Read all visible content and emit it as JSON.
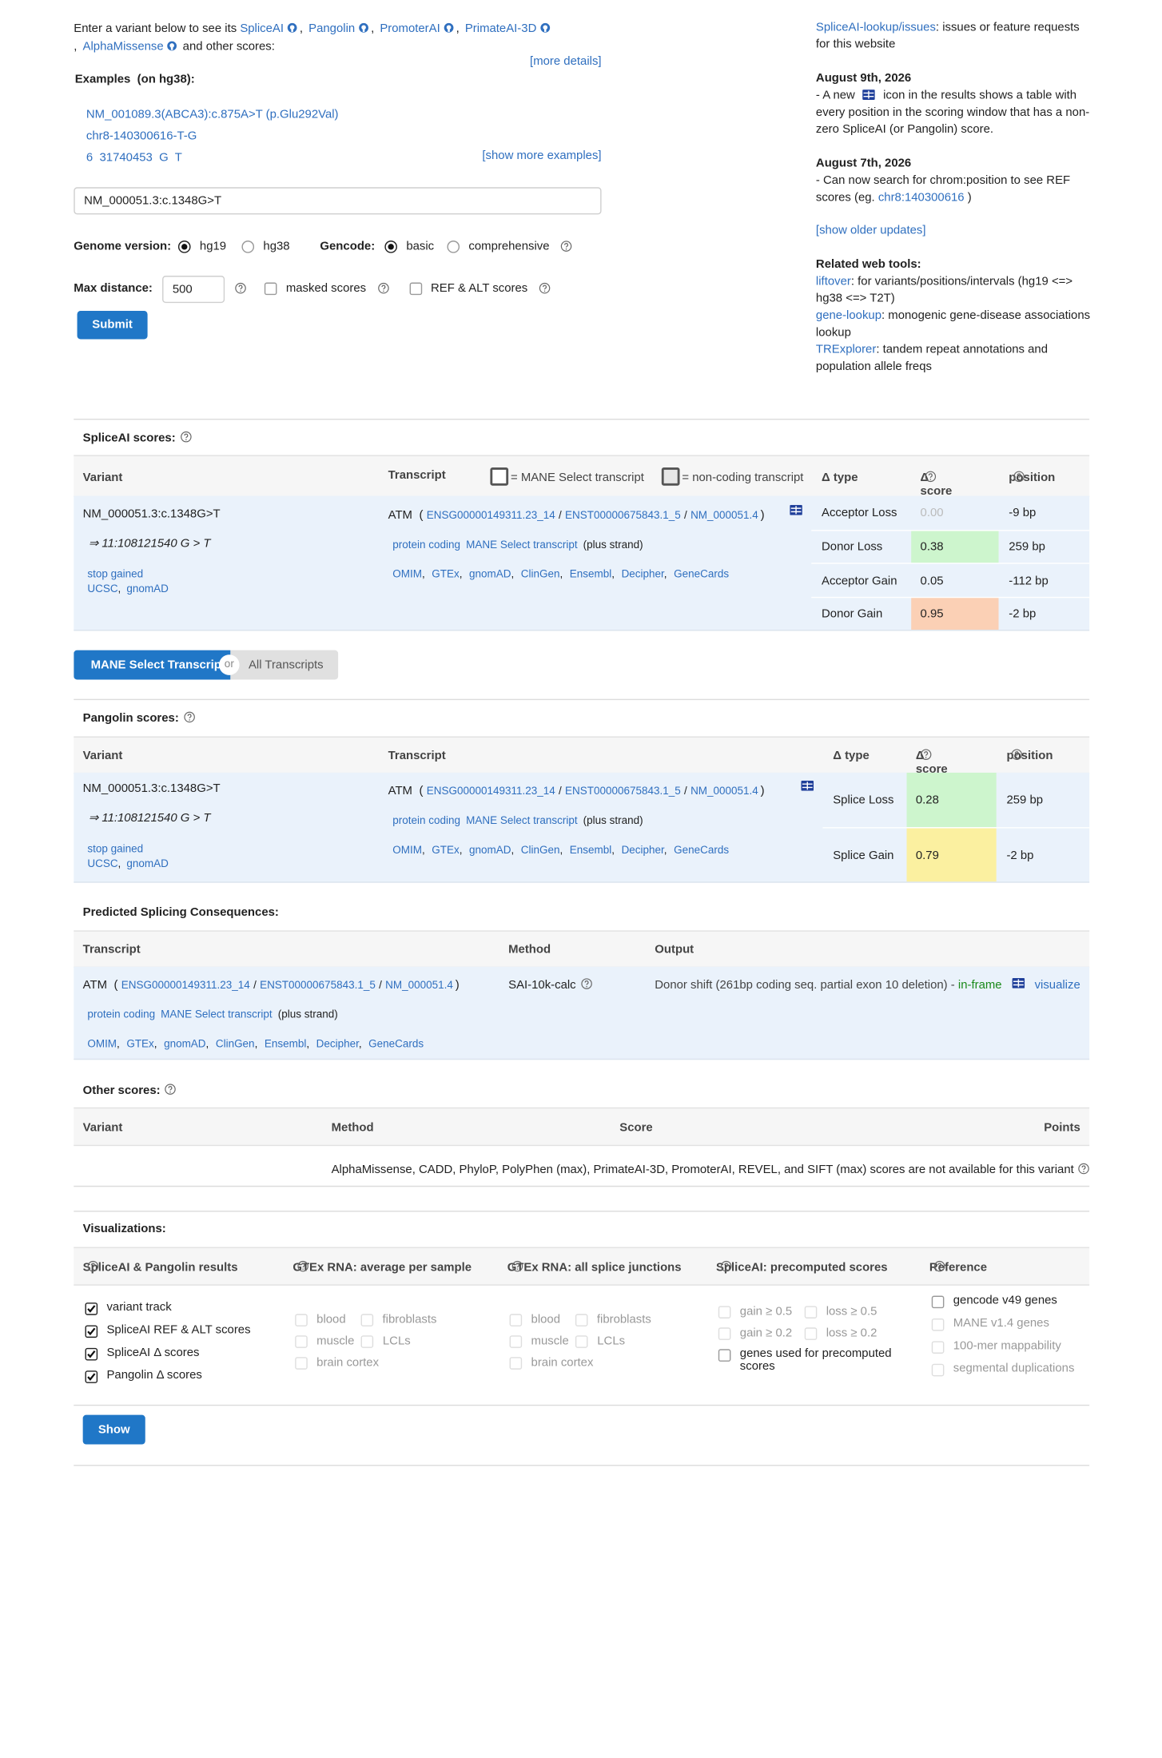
{
  "intro": {
    "lead": "Enter a variant below to see its",
    "tools": [
      "SpliceAI",
      "Pangolin",
      "PromoterAI",
      "PrimateAI-3D",
      "AlphaMissense"
    ],
    "separator": ",",
    "tail": "and other scores:",
    "more_details": "[more details]"
  },
  "examples": {
    "label": "Examples",
    "build": "(on hg38):",
    "items": [
      "NM_001089.3(ABCA3):c.875A>T (p.Glu292Val)",
      "chr8-140300616-T-G",
      "6  31740453  G  T"
    ],
    "show_more": "[show more examples]"
  },
  "form": {
    "variant": "NM_000051.3:c.1348G>T",
    "genome_label": "Genome version:",
    "genomes": [
      {
        "label": "hg19",
        "selected": true
      },
      {
        "label": "hg38",
        "selected": false
      }
    ],
    "gencode_label": "Gencode:",
    "gencodes": [
      {
        "label": "basic",
        "selected": true
      },
      {
        "label": "comprehensive",
        "selected": false
      }
    ],
    "max_distance_label": "Max distance:",
    "max_distance": "500",
    "options": [
      {
        "label": "masked scores",
        "checked": false
      },
      {
        "label": "REF & ALT scores",
        "checked": false
      }
    ],
    "submit": "Submit"
  },
  "sidebar": {
    "issues_link": "SpliceAI-lookup/issues",
    "issues_text": ": issues or feature requests for this website",
    "updates": [
      {
        "date": "August 9th, 2026",
        "before": "- A new",
        "after": "icon in the results shows a table with every position in the scoring window that has a non-zero SpliceAI (or Pangolin) score."
      },
      {
        "date": "August 7th, 2026",
        "before": "- Can now search for chrom:position to see REF scores (eg.",
        "link": "chr8:140300616",
        "after": ")"
      }
    ],
    "show_older": "[show older updates]",
    "tools_title": "Related web tools:",
    "tools": [
      {
        "name": "liftover",
        "text": ": for variants/positions/intervals (hg19 <=> hg38 <=> T2T)"
      },
      {
        "name": "gene-lookup",
        "text": ": monogenic gene-disease associations lookup"
      },
      {
        "name": "TRExplorer",
        "text": ": tandem repeat annotations and population allele freqs"
      }
    ]
  },
  "variant": {
    "hgvs": "NM_000051.3:c.1348G>T",
    "genomic": "⇒ 11:108121540 G > T",
    "consequence": "stop gained",
    "links": [
      "UCSC",
      "gnomAD"
    ],
    "link_separator": ","
  },
  "transcript": {
    "gene": "ATM",
    "open": "(",
    "ids": [
      "ENSG00000149311.23_14",
      "ENST00000675843.1_5",
      "NM_000051.4"
    ],
    "id_separator": "/",
    "close": ")",
    "biotype": "protein coding",
    "mane": "MANE Select transcript",
    "strand": "(plus strand)",
    "links": [
      "OMIM",
      "GTEx",
      "gnomAD",
      "ClinGen",
      "Ensembl",
      "Decipher",
      "GeneCards"
    ],
    "link_separator": ","
  },
  "spliceai": {
    "title": "SpliceAI scores:",
    "headers": {
      "variant": "Variant",
      "transcript": "Transcript",
      "mane_legend": "= MANE Select transcript",
      "noncoding_legend": "= non-coding transcript",
      "type": "Δ type",
      "score": "Δ score",
      "position": "position"
    },
    "rows": [
      {
        "type": "Acceptor Loss",
        "score": "0.00",
        "position": "-9 bp",
        "text_color": "#bbbbbb"
      },
      {
        "type": "Donor Loss",
        "score": "0.38",
        "position": "259 bp",
        "color": "#cdf5cd"
      },
      {
        "type": "Acceptor Gain",
        "score": "0.05",
        "position": "-112 bp"
      },
      {
        "type": "Donor Gain",
        "score": "0.95",
        "position": "-2 bp",
        "color": "#fbd0b5"
      }
    ]
  },
  "toggle": {
    "selected": "MANE Select Transcript",
    "or": "or",
    "other": "All Transcripts"
  },
  "pangolin": {
    "title": "Pangolin scores:",
    "headers": {
      "variant": "Variant",
      "transcript": "Transcript",
      "type": "Δ type",
      "score": "Δ score",
      "position": "position"
    },
    "rows": [
      {
        "type": "Splice Loss",
        "score": "0.28",
        "position": "259 bp",
        "color": "#cdf5cd"
      },
      {
        "type": "Splice Gain",
        "score": "0.79",
        "position": "-2 bp",
        "color": "#fbf0a0"
      }
    ]
  },
  "consequences": {
    "title": "Predicted Splicing Consequences:",
    "headers": {
      "transcript": "Transcript",
      "method": "Method",
      "output": "Output"
    },
    "method": "SAI-10k-calc",
    "output": "Donor shift (261bp coding seq. partial exon 10 deletion) -",
    "frame": "in-frame",
    "visualize": "visualize"
  },
  "other_scores": {
    "title": "Other scores:",
    "headers": {
      "variant": "Variant",
      "method": "Method",
      "score": "Score",
      "points": "Points"
    },
    "message": "AlphaMissense, CADD, PhyloP, PolyPhen (max), PrimateAI-3D, PromoterAI, REVEL, and SIFT (max) scores are not available for this variant"
  },
  "visualizations": {
    "title": "Visualizations:",
    "groups": [
      {
        "title": "SpliceAI & Pangolin results",
        "items": [
          {
            "label": "variant track",
            "checked": true,
            "enabled": true
          },
          {
            "label": "SpliceAI REF & ALT scores",
            "checked": true,
            "enabled": true
          },
          {
            "label": "SpliceAI Δ scores",
            "checked": true,
            "enabled": true
          },
          {
            "label": "Pangolin Δ scores",
            "checked": true,
            "enabled": true
          }
        ]
      },
      {
        "title": "GTEx RNA: average per sample",
        "items": [
          {
            "label": "blood",
            "checked": false,
            "enabled": false
          },
          {
            "label": "fibroblasts",
            "checked": false,
            "enabled": false
          },
          {
            "label": "muscle",
            "checked": false,
            "enabled": false
          },
          {
            "label": "LCLs",
            "checked": false,
            "enabled": false
          },
          {
            "label": "brain cortex",
            "checked": false,
            "enabled": false
          }
        ]
      },
      {
        "title": "GTEx RNA: all splice junctions",
        "items": [
          {
            "label": "blood",
            "checked": false,
            "enabled": false
          },
          {
            "label": "fibroblasts",
            "checked": false,
            "enabled": false
          },
          {
            "label": "muscle",
            "checked": false,
            "enabled": false
          },
          {
            "label": "LCLs",
            "checked": false,
            "enabled": false
          },
          {
            "label": "brain cortex",
            "checked": false,
            "enabled": false
          }
        ]
      },
      {
        "title": "SpliceAI: precomputed scores",
        "items": [
          {
            "label": "gain ≥ 0.5",
            "checked": false,
            "enabled": false
          },
          {
            "label": "loss ≥ 0.5",
            "checked": false,
            "enabled": false
          },
          {
            "label": "gain ≥ 0.2",
            "checked": false,
            "enabled": false
          },
          {
            "label": "loss ≥ 0.2",
            "checked": false,
            "enabled": false
          },
          {
            "label": "genes used for precomputed scores",
            "checked": false,
            "enabled": true
          }
        ]
      },
      {
        "title": "Reference",
        "items": [
          {
            "label": "gencode v49 genes",
            "checked": false,
            "enabled": true
          },
          {
            "label": "MANE v1.4 genes",
            "checked": false,
            "enabled": false
          },
          {
            "label": "100-mer mappability",
            "checked": false,
            "enabled": false
          },
          {
            "label": "segmental duplications",
            "checked": false,
            "enabled": false
          }
        ]
      }
    ],
    "show": "Show"
  }
}
